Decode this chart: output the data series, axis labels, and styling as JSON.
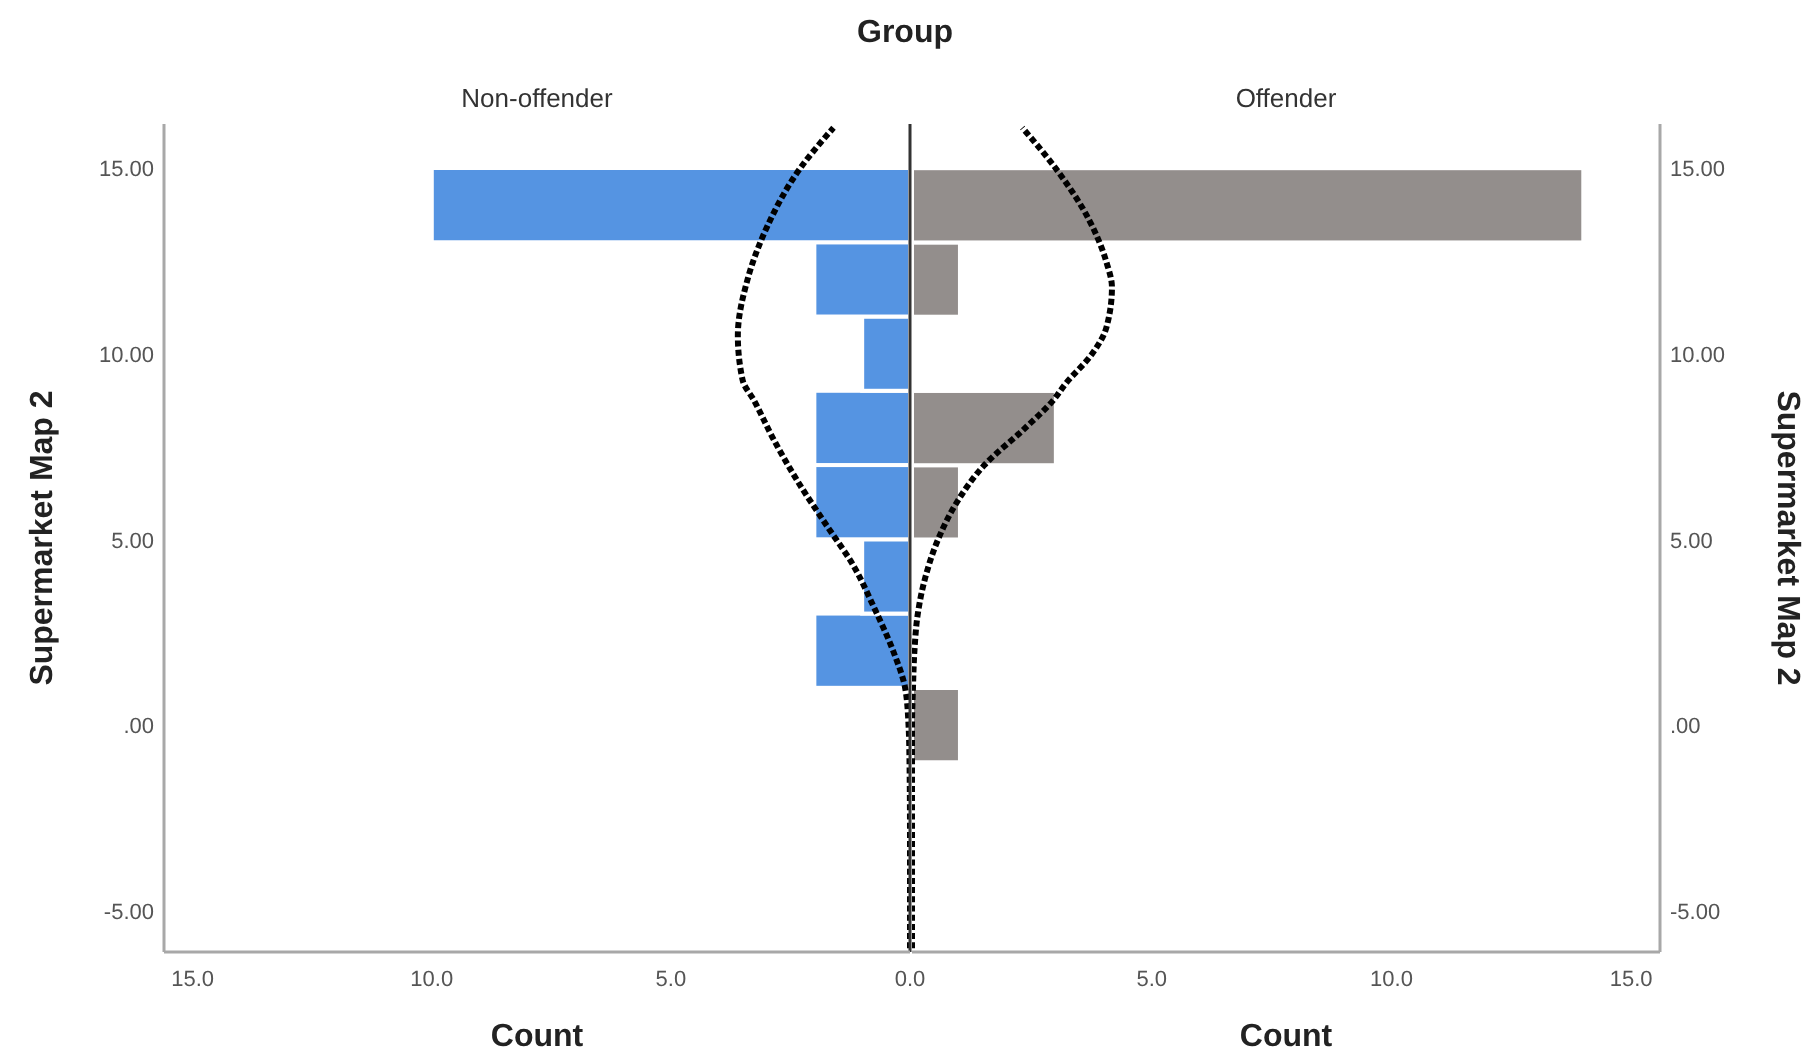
{
  "chart_data": [
    {
      "type": "histogram",
      "orientation": "horizontal",
      "title": "Group",
      "subtitle": "Non-offender",
      "xlabel": "Count",
      "ylabel": "Supermarket Map 2",
      "bins": [
        -1,
        1,
        3,
        5,
        7,
        9,
        11,
        13,
        15
      ],
      "series": [
        {
          "color": "#5594e2",
          "values": [
            0,
            2,
            1,
            2,
            2,
            1,
            2,
            10
          ]
        },
        {
          "type": "line",
          "color": "#000000",
          "line_style": "dotted",
          "marker": "none",
          "x": [
            -6,
            -3,
            -1,
            0,
            1,
            2,
            3.2,
            4.3,
            5.4,
            6.6,
            7.7,
            8.75,
            9.3,
            10.5,
            12,
            13.4,
            15,
            16.1
          ],
          "values": [
            0,
            0,
            0.01,
            0.03,
            0.1,
            0.35,
            0.76,
            1.18,
            1.75,
            2.36,
            2.85,
            3.26,
            3.5,
            3.6,
            3.4,
            3.0,
            2.3,
            1.6
          ]
        }
      ],
      "xlim": [
        15.6,
        0
      ],
      "xticks": [
        {
          "value": 15,
          "label": "15.0"
        },
        {
          "value": 10,
          "label": "10.0"
        },
        {
          "value": 5,
          "label": "5.0"
        },
        {
          "value": 0,
          "label": "0.0"
        }
      ],
      "ylim": [
        -6.1,
        16.2
      ],
      "yticks": [
        {
          "value": 15,
          "label": "15.00"
        },
        {
          "value": 10,
          "label": "10.00"
        },
        {
          "value": 5,
          "label": "5.00"
        },
        {
          "value": 0,
          "label": ".00"
        },
        {
          "value": -5,
          "label": "-5.00"
        }
      ],
      "ref_lines": [
        {
          "axis": "x",
          "value": 0,
          "color": "#333333"
        }
      ]
    },
    {
      "type": "histogram",
      "orientation": "horizontal",
      "subtitle": "Offender",
      "xlabel": "Count",
      "ylabel": "Supermarket Map 2",
      "bins": [
        -1,
        1,
        3,
        5,
        7,
        9,
        11,
        13,
        15
      ],
      "series": [
        {
          "color": "#938e8c",
          "values": [
            1,
            0,
            0,
            1,
            3,
            0,
            1,
            14
          ]
        },
        {
          "type": "line",
          "color": "#000000",
          "line_style": "dotted",
          "marker": "none",
          "x": [
            -6,
            0,
            1,
            2,
            3,
            4,
            5,
            6,
            7,
            8,
            8.75,
            9.2,
            10,
            10.7,
            11.8,
            12.5,
            13.6,
            15,
            16.1
          ],
          "values": [
            0,
            0,
            0.02,
            0.05,
            0.12,
            0.28,
            0.54,
            0.93,
            1.5,
            2.35,
            2.94,
            3.2,
            3.75,
            4.05,
            4.17,
            4.05,
            3.7,
            3.0,
            2.3
          ]
        }
      ],
      "xlim": [
        0,
        15.6
      ],
      "xticks": [
        {
          "value": 5,
          "label": "5.0"
        },
        {
          "value": 10,
          "label": "10.0"
        },
        {
          "value": 15,
          "label": "15.0"
        }
      ],
      "ylim": [
        -6.1,
        16.2
      ],
      "yticks": [
        {
          "value": 15,
          "label": "15.00"
        },
        {
          "value": 10,
          "label": "10.00"
        },
        {
          "value": 5,
          "label": "5.00"
        },
        {
          "value": 0,
          "label": ".00"
        },
        {
          "value": -5,
          "label": "-5.00"
        }
      ]
    }
  ]
}
